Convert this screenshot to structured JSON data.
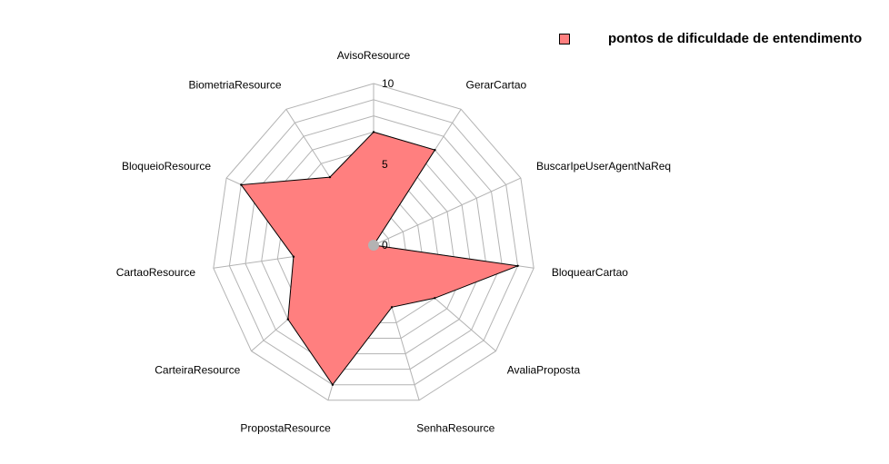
{
  "chart_data": {
    "type": "radar",
    "title": "",
    "categories": [
      "AvisoResource",
      "GerarCartao",
      "BuscarIpeUserAgentNaReq",
      "BloquearCartao",
      "AvaliaProposta",
      "SenhaResource",
      "PropostaResource",
      "CarteiraResource",
      "CartaoResource",
      "BloqueioResource",
      "BiometriaResource"
    ],
    "series": [
      {
        "name": "pontos de dificuldade de entendimento",
        "values": [
          7,
          7,
          0,
          9,
          5,
          4,
          9,
          7,
          5,
          9,
          5
        ],
        "fill": "#ff7f7f",
        "stroke": "#000000"
      }
    ],
    "rlim": [
      0,
      10
    ],
    "ticks": [
      "0",
      "5",
      "10"
    ],
    "grid": true,
    "legend_position": "top-right",
    "grid_color": "#b3b3b3",
    "center_marker_color": "#b3b3b3"
  }
}
